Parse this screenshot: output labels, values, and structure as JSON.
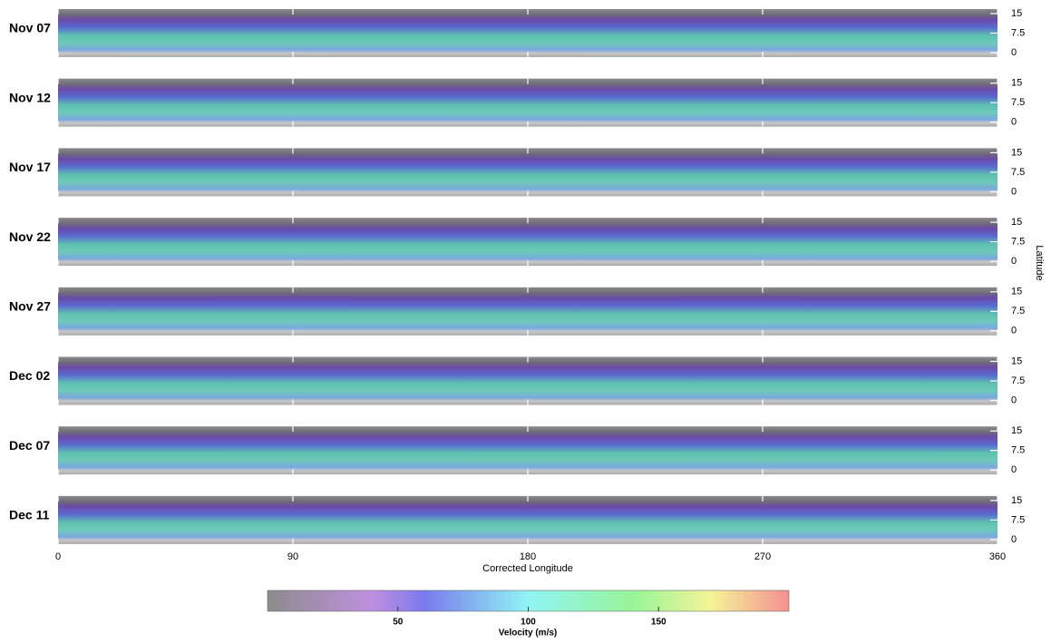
{
  "chart_data": {
    "type": "strips",
    "panels": [
      "Nov 07",
      "Nov 12",
      "Nov 17",
      "Nov 22",
      "Nov 27",
      "Dec 02",
      "Dec 07",
      "Dec 11"
    ],
    "xlabel": "Corrected Longitude",
    "ylabel": "Latitude",
    "xlim": [
      0,
      360
    ],
    "xticks": [
      0,
      90,
      180,
      270,
      360
    ],
    "ylim": [
      0,
      15
    ],
    "yticks": [
      0,
      7.5,
      15
    ],
    "colorbar": {
      "label": "Velocity (m/s)",
      "lim": [
        0,
        200
      ],
      "ticks": [
        50,
        100,
        150
      ]
    }
  }
}
